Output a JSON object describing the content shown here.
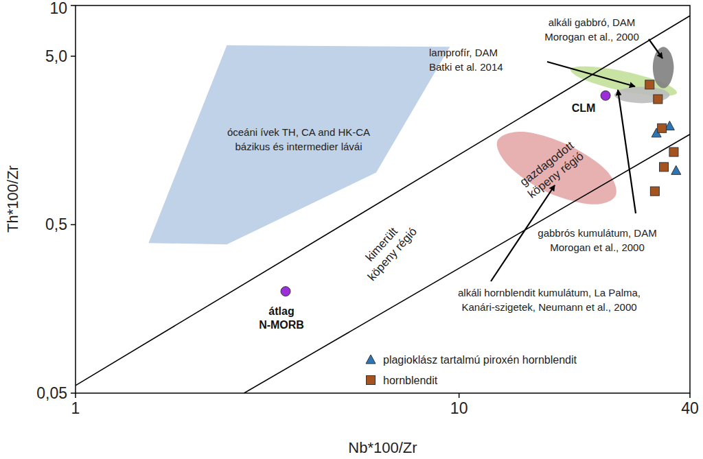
{
  "chart_data": {
    "type": "scatter",
    "x_label": "Nb*100/Zr",
    "y_label": "Th*100/Zr",
    "log": true,
    "xlim": [
      1,
      40
    ],
    "ylim": [
      0.05,
      10
    ],
    "xticks": [
      1,
      10,
      40
    ],
    "yticks": [
      {
        "value": 0.05,
        "label": "0,05"
      },
      {
        "value": 0.5,
        "label": "0,5"
      },
      {
        "value": 5,
        "label": "5,0"
      },
      10
    ],
    "series": [
      {
        "name": "plagioklász tartalmú piroxén hornblendit",
        "color": "#2e75b6",
        "marker": "triangle",
        "x": [
          32.7,
          35.4,
          36.8
        ],
        "values": [
          1.75,
          1.93,
          1.05
        ]
      },
      {
        "name": "hornblendit",
        "color": "#a5541f",
        "marker": "square",
        "x": [
          31.4,
          33.0,
          33.8,
          36.3,
          34.2,
          32.4
        ],
        "values": [
          3.39,
          2.78,
          1.87,
          1.35,
          1.1,
          0.79
        ]
      }
    ],
    "reference_points": [
      {
        "label": "CLM",
        "x": 24.1,
        "y": 2.92,
        "color": "#9b30d9"
      },
      {
        "label": "átlag\nN-MORB",
        "x": 3.53,
        "y": 0.201,
        "color": "#9b30d9"
      }
    ],
    "regions": [
      {
        "label": "óceáni ívek TH, CA and HK-CA\nbázikus és intermedier lávái",
        "color": "#b9cde5",
        "line_style": "straight",
        "x": [
          2.48,
          9.46,
          6.08,
          2.48,
          1.55
        ],
        "y": [
          5.8,
          5.69,
          1.02,
          0.382,
          0.389
        ]
      },
      {
        "label": "gazdagodott\nköpeny régió",
        "color": "#e6a9a9",
        "line_style": "smooth",
        "x": [
          25.6,
          22.1,
          16.8,
          13.4,
          12.6,
          14.7,
          19.2,
          24.2
        ],
        "y": [
          0.745,
          0.661,
          0.788,
          1.13,
          1.58,
          1.78,
          1.49,
          1.05
        ]
      },
      {
        "color": "#c3e09a",
        "line_style": "smooth",
        "x": [
          37.0,
          33.4,
          26.5,
          21.2,
          19.5,
          21.5,
          27.2,
          34.0
        ],
        "y": [
          3.03,
          2.9,
          3.11,
          3.62,
          4.17,
          4.35,
          4.05,
          3.49
        ]
      },
      {
        "color": "#bdbdbd",
        "line_style": "smooth",
        "x": [
          35.4,
          33.7,
          30.0,
          26.7,
          25.4,
          26.7,
          30.0,
          33.7
        ],
        "y": [
          2.94,
          2.72,
          2.63,
          2.72,
          2.94,
          3.19,
          3.29,
          3.19
        ]
      },
      {
        "color": "#7f7f7f",
        "line_style": "smooth",
        "x": [
          36.3,
          35.6,
          34.1,
          32.6,
          32.0,
          32.6,
          34.1,
          35.6
        ],
        "y": [
          4.29,
          3.51,
          3.23,
          3.51,
          4.29,
          5.23,
          5.69,
          5.23
        ]
      }
    ],
    "boundary_lines": [
      {
        "color": "#000000",
        "x": [
          1,
          40
        ],
        "y": [
          0.0555,
          8.69
        ]
      },
      {
        "color": "#000000",
        "x": [
          2.75,
          40
        ],
        "y": [
          0.05,
          1.72
        ]
      }
    ],
    "annotations": [
      {
        "text": "alkáli gabbró, DAM\nMorogan et al., 2000"
      },
      {
        "text": "lamprofír, DAM\nBatki et al. 2014"
      },
      {
        "text": "gabbrós kumulátum, DAM\nMorogan et al., 2000"
      },
      {
        "text": "alkáli hornblendit kumulátum, La Palma,\nKanári-szigetek, Neumann et al., 2000"
      },
      {
        "text": "kimerült\nköpeny régió"
      }
    ]
  }
}
